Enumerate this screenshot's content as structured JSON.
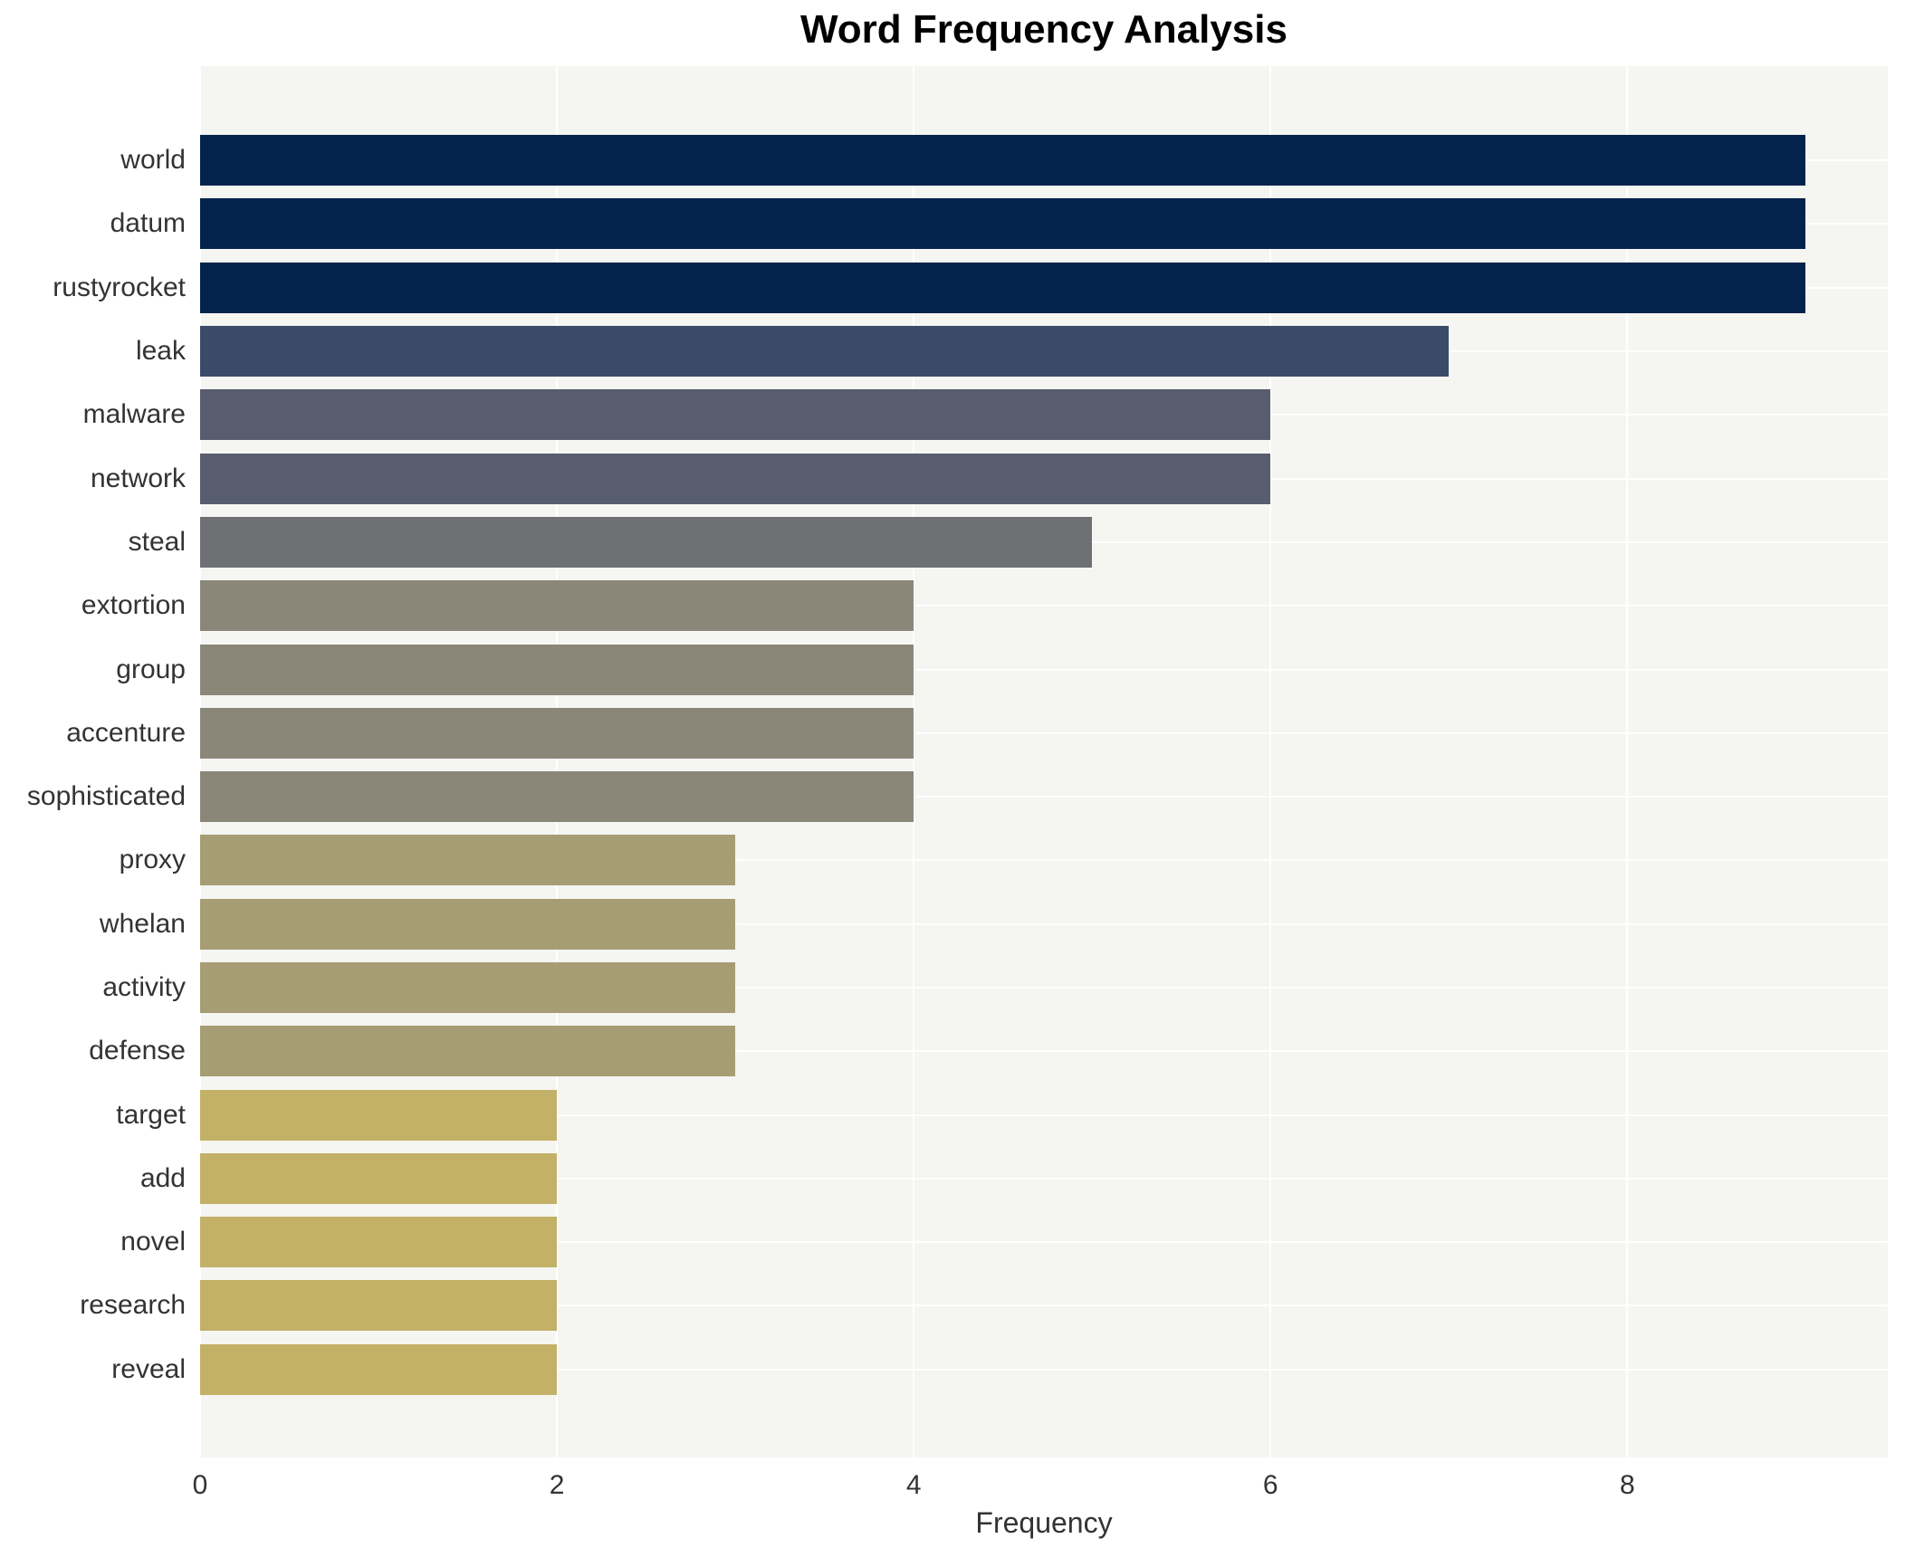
{
  "chart_data": {
    "type": "bar",
    "orientation": "horizontal",
    "title": "Word Frequency Analysis",
    "xlabel": "Frequency",
    "ylabel": "",
    "categories": [
      "world",
      "datum",
      "rustyrocket",
      "leak",
      "malware",
      "network",
      "steal",
      "extortion",
      "group",
      "accenture",
      "sophisticated",
      "proxy",
      "whelan",
      "activity",
      "defense",
      "target",
      "add",
      "novel",
      "research",
      "reveal"
    ],
    "values": [
      9,
      9,
      9,
      7,
      6,
      6,
      5,
      4,
      4,
      4,
      4,
      3,
      3,
      3,
      3,
      2,
      2,
      2,
      2,
      2
    ],
    "bar_colors": [
      "#03234c",
      "#03234c",
      "#03234c",
      "#3c4a6a",
      "#575d6d",
      "#575d6d",
      "#6e7074",
      "#8a8779",
      "#8a8779",
      "#8a8779",
      "#8a8779",
      "#a69d75",
      "#a69d75",
      "#a69d75",
      "#a69d75",
      "#c2b166",
      "#c2b166",
      "#c2b166",
      "#c2b166",
      "#c2b166"
    ],
    "xlim": [
      0,
      9.46
    ],
    "xticks": [
      0,
      2,
      4,
      6,
      8
    ],
    "legend_position": "none",
    "grid": {
      "vertical_major": true,
      "horizontal_category": true,
      "grid_color": "#ffffff"
    },
    "plot_bg_color": "#f5f5f2",
    "figure_bg_color": "#ffffff",
    "bar_height_fraction": 0.8
  }
}
